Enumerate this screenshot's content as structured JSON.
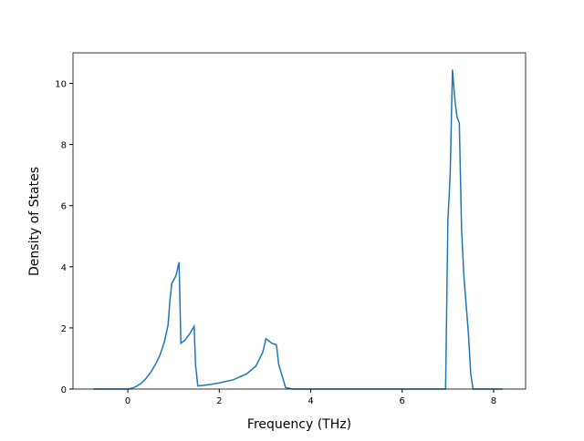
{
  "chart_data": {
    "type": "line",
    "xlabel": "Frequency (THz)",
    "ylabel": "Density of States",
    "x": [
      -0.75,
      0,
      0.1,
      0.2,
      0.3,
      0.4,
      0.5,
      0.6,
      0.7,
      0.8,
      0.88,
      0.92,
      0.96,
      1.05,
      1.12,
      1.16,
      1.25,
      1.35,
      1.45,
      1.48,
      1.53,
      1.8,
      2.0,
      2.3,
      2.6,
      2.8,
      2.95,
      3.02,
      3.15,
      3.25,
      3.3,
      3.38,
      3.45,
      3.6,
      6.95,
      7.0,
      7.05,
      7.1,
      7.15,
      7.2,
      7.25,
      7.3,
      7.35,
      7.45,
      7.5,
      7.55,
      8.2
    ],
    "series": [
      {
        "color": "#1f77b4",
        "values": [
          0,
          0,
          0.03,
          0.1,
          0.2,
          0.35,
          0.55,
          0.8,
          1.1,
          1.55,
          2.1,
          2.9,
          3.45,
          3.7,
          4.15,
          1.5,
          1.6,
          1.8,
          2.05,
          0.8,
          0.1,
          0.15,
          0.2,
          0.3,
          0.5,
          0.75,
          1.2,
          1.65,
          1.5,
          1.45,
          0.8,
          0.4,
          0.05,
          0,
          0,
          5.5,
          7.0,
          10.45,
          9.5,
          8.9,
          8.7,
          5.2,
          3.7,
          1.8,
          0.5,
          0,
          0
        ]
      }
    ],
    "xlim": [
      -1.2,
      8.7
    ],
    "xticks": [
      0,
      2,
      4,
      6,
      8
    ],
    "ylim": [
      0,
      11
    ],
    "yticks": [
      0,
      2,
      4,
      6,
      8,
      10
    ]
  }
}
